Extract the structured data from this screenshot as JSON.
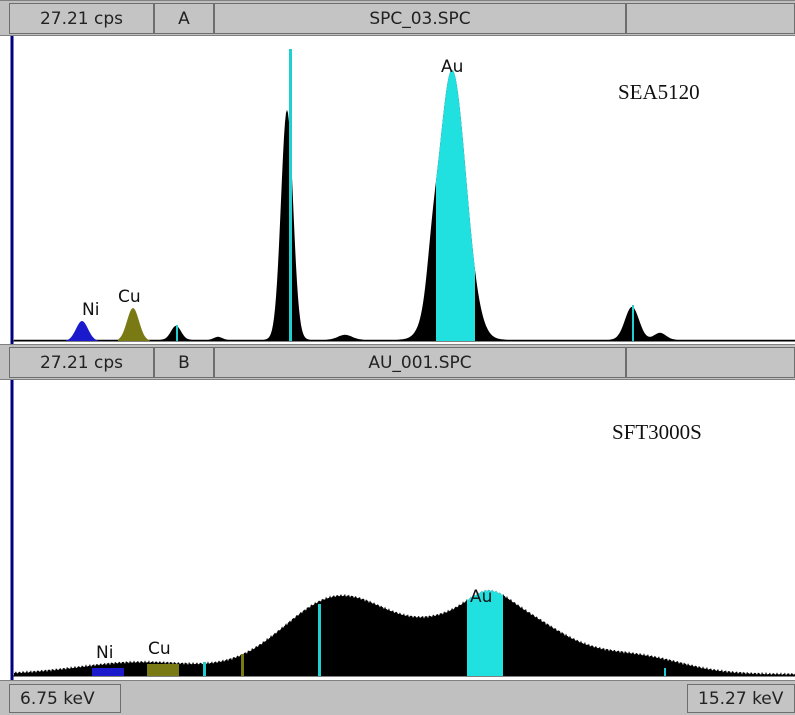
{
  "spectrum_a": {
    "cps": "27.21 cps",
    "tag": "A",
    "file": "SPC_03.SPC",
    "instrument": "SEA5120",
    "labels": {
      "ni": "Ni",
      "cu": "Cu",
      "au": "Au"
    }
  },
  "spectrum_b": {
    "cps": "27.21 cps",
    "tag": "B",
    "file": "AU_001.SPC",
    "instrument": "SFT3000S",
    "labels": {
      "ni": "Ni",
      "cu": "Cu",
      "au": "Au"
    }
  },
  "axis": {
    "start_energy": "6.75 keV",
    "end_energy": "15.27 keV"
  },
  "colors": {
    "spectrum": "#000000",
    "ni": "#1a1acc",
    "cu": "#7a7a14",
    "au": "#20e0e0",
    "marker": "#20d0d0",
    "axis": "#000080"
  }
}
